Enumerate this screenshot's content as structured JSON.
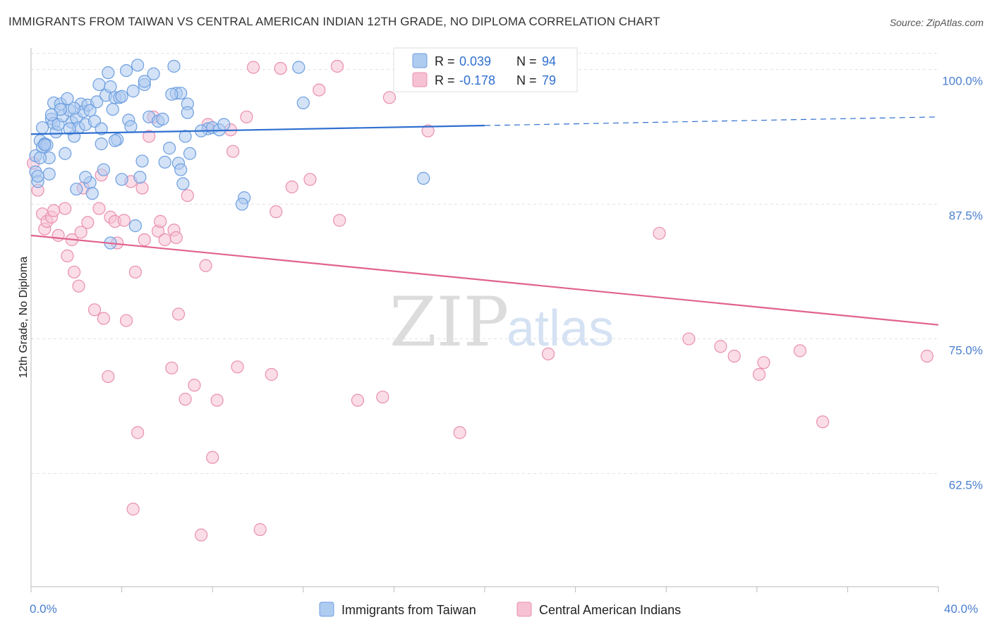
{
  "title": "IMMIGRANTS FROM TAIWAN VS CENTRAL AMERICAN INDIAN 12TH GRADE, NO DIPLOMA CORRELATION CHART",
  "source": "Source: ZipAtlas.com",
  "watermark": {
    "zip": "ZIP",
    "atlas": "atlas"
  },
  "colors": {
    "blue_fill": "#aecbf0",
    "blue_stroke": "#6d9fe0",
    "blue_line": "#2f6fd0",
    "pink_fill": "#f6c1d3",
    "pink_stroke": "#ea8fb0",
    "pink_line": "#e0628e",
    "grid": "#e3e3e3",
    "tick_text": "#4a7fd0"
  },
  "legend": {
    "rows": [
      {
        "r_label": "R = ",
        "r_value": "0.039",
        "n_label": "N = ",
        "n_value": "94",
        "color": "blue"
      },
      {
        "r_label": "R = ",
        "r_value": "-0.178",
        "n_label": "N = ",
        "n_value": "79",
        "color": "pink"
      }
    ]
  },
  "chart_data": {
    "type": "scatter",
    "title": "IMMIGRANTS FROM TAIWAN VS CENTRAL AMERICAN INDIAN 12TH GRADE, NO DIPLOMA CORRELATION CHART",
    "xlabel": "",
    "ylabel": "12th Grade, No Diploma",
    "xlim": [
      0,
      40
    ],
    "ylim": [
      52,
      102
    ],
    "x_tick_labels": [
      "0.0%",
      "40.0%"
    ],
    "y_ticks": [
      62.5,
      75.0,
      87.5,
      100.0
    ],
    "y_tick_labels": [
      "62.5%",
      "75.0%",
      "87.5%",
      "100.0%"
    ],
    "grid": true,
    "legend_position": "top-center",
    "series": [
      {
        "name": "Immigrants from Taiwan",
        "color": "blue",
        "trend": {
          "x0": 0,
          "y0": 94.0,
          "x1": 20,
          "y1": 94.8,
          "dash_to_x": 40,
          "dash_to_y": 95.6
        },
        "points": [
          [
            0.2,
            92.0
          ],
          [
            0.2,
            90.5
          ],
          [
            0.3,
            89.6
          ],
          [
            0.4,
            93.4
          ],
          [
            0.5,
            92.8
          ],
          [
            0.5,
            94.6
          ],
          [
            0.6,
            93.1
          ],
          [
            0.7,
            93.0
          ],
          [
            0.8,
            90.3
          ],
          [
            0.8,
            91.8
          ],
          [
            0.9,
            95.4
          ],
          [
            1.0,
            95.0
          ],
          [
            1.0,
            96.9
          ],
          [
            1.1,
            94.2
          ],
          [
            1.2,
            94.9
          ],
          [
            1.3,
            96.8
          ],
          [
            1.4,
            95.7
          ],
          [
            1.5,
            92.2
          ],
          [
            1.6,
            97.3
          ],
          [
            1.7,
            96.2
          ],
          [
            1.8,
            95.1
          ],
          [
            1.9,
            93.8
          ],
          [
            2.0,
            95.5
          ],
          [
            2.1,
            94.6
          ],
          [
            2.2,
            96.8
          ],
          [
            2.3,
            96.1
          ],
          [
            2.4,
            94.9
          ],
          [
            2.5,
            96.7
          ],
          [
            2.6,
            89.5
          ],
          [
            2.7,
            88.5
          ],
          [
            2.8,
            95.2
          ],
          [
            2.9,
            97.0
          ],
          [
            3.0,
            98.6
          ],
          [
            3.1,
            94.5
          ],
          [
            3.1,
            93.1
          ],
          [
            3.2,
            90.7
          ],
          [
            3.3,
            97.6
          ],
          [
            3.4,
            99.7
          ],
          [
            3.5,
            98.4
          ],
          [
            3.6,
            96.3
          ],
          [
            3.7,
            97.4
          ],
          [
            3.8,
            93.5
          ],
          [
            3.9,
            97.4
          ],
          [
            4.0,
            89.8
          ],
          [
            4.2,
            99.9
          ],
          [
            4.3,
            95.3
          ],
          [
            4.5,
            98.0
          ],
          [
            4.6,
            85.5
          ],
          [
            4.7,
            100.4
          ],
          [
            4.8,
            90.0
          ],
          [
            4.9,
            91.5
          ],
          [
            5.0,
            98.6
          ],
          [
            5.2,
            95.6
          ],
          [
            5.4,
            99.6
          ],
          [
            5.6,
            95.2
          ],
          [
            5.9,
            91.4
          ],
          [
            6.1,
            92.7
          ],
          [
            6.3,
            100.3
          ],
          [
            6.4,
            97.8
          ],
          [
            6.5,
            91.3
          ],
          [
            6.6,
            97.8
          ],
          [
            6.7,
            89.4
          ],
          [
            6.8,
            93.8
          ],
          [
            6.9,
            96.8
          ],
          [
            7.0,
            92.2
          ],
          [
            7.8,
            94.5
          ],
          [
            8.0,
            94.6
          ],
          [
            8.3,
            94.4
          ],
          [
            8.5,
            94.9
          ],
          [
            9.4,
            88.1
          ],
          [
            11.8,
            100.2
          ],
          [
            12.0,
            96.9
          ],
          [
            17.3,
            89.9
          ],
          [
            0.3,
            90.1
          ],
          [
            0.6,
            93.0
          ],
          [
            1.3,
            96.3
          ],
          [
            2.0,
            88.9
          ],
          [
            2.4,
            90.0
          ],
          [
            3.5,
            83.9
          ],
          [
            4.0,
            97.5
          ],
          [
            5.8,
            95.4
          ],
          [
            6.6,
            90.7
          ],
          [
            7.5,
            94.3
          ],
          [
            9.3,
            87.5
          ],
          [
            0.4,
            91.8
          ],
          [
            1.7,
            94.5
          ],
          [
            2.6,
            96.2
          ],
          [
            3.7,
            93.4
          ],
          [
            5.0,
            98.9
          ],
          [
            6.2,
            97.7
          ],
          [
            0.9,
            95.8
          ],
          [
            1.9,
            96.4
          ],
          [
            4.4,
            94.7
          ],
          [
            6.9,
            96.0
          ]
        ]
      },
      {
        "name": "Central American Indians",
        "color": "pink",
        "trend": {
          "x0": 0,
          "y0": 84.6,
          "x1": 40,
          "y1": 76.3
        },
        "points": [
          [
            0.1,
            91.3
          ],
          [
            0.3,
            88.8
          ],
          [
            0.5,
            86.6
          ],
          [
            0.6,
            85.2
          ],
          [
            0.7,
            85.9
          ],
          [
            0.9,
            86.3
          ],
          [
            1.2,
            84.6
          ],
          [
            1.5,
            87.1
          ],
          [
            1.6,
            82.7
          ],
          [
            1.8,
            84.2
          ],
          [
            1.9,
            81.2
          ],
          [
            2.1,
            79.9
          ],
          [
            2.3,
            89.0
          ],
          [
            2.5,
            85.8
          ],
          [
            2.8,
            77.7
          ],
          [
            3.0,
            87.1
          ],
          [
            3.2,
            76.9
          ],
          [
            3.4,
            71.5
          ],
          [
            3.5,
            86.3
          ],
          [
            3.7,
            85.9
          ],
          [
            3.8,
            83.9
          ],
          [
            4.2,
            76.7
          ],
          [
            4.4,
            89.6
          ],
          [
            4.5,
            59.2
          ],
          [
            4.6,
            81.2
          ],
          [
            4.7,
            66.3
          ],
          [
            4.9,
            89.0
          ],
          [
            5.0,
            84.2
          ],
          [
            5.2,
            93.8
          ],
          [
            5.6,
            85.0
          ],
          [
            5.7,
            85.9
          ],
          [
            5.9,
            84.2
          ],
          [
            6.2,
            72.3
          ],
          [
            6.3,
            85.1
          ],
          [
            6.4,
            84.4
          ],
          [
            6.5,
            77.3
          ],
          [
            6.8,
            69.4
          ],
          [
            7.2,
            70.7
          ],
          [
            7.5,
            56.8
          ],
          [
            7.7,
            81.8
          ],
          [
            7.8,
            94.9
          ],
          [
            8.0,
            64.0
          ],
          [
            8.2,
            69.3
          ],
          [
            8.8,
            94.4
          ],
          [
            8.9,
            92.4
          ],
          [
            9.1,
            72.4
          ],
          [
            9.5,
            95.6
          ],
          [
            9.8,
            100.2
          ],
          [
            10.1,
            57.3
          ],
          [
            10.6,
            71.7
          ],
          [
            10.8,
            86.8
          ],
          [
            11.0,
            100.1
          ],
          [
            11.5,
            89.1
          ],
          [
            12.3,
            89.8
          ],
          [
            12.7,
            98.1
          ],
          [
            13.5,
            100.3
          ],
          [
            13.6,
            86.0
          ],
          [
            14.4,
            69.3
          ],
          [
            15.5,
            69.6
          ],
          [
            15.8,
            97.4
          ],
          [
            17.5,
            94.3
          ],
          [
            18.9,
            66.3
          ],
          [
            22.8,
            73.6
          ],
          [
            27.7,
            84.8
          ],
          [
            29.0,
            75.0
          ],
          [
            30.4,
            74.3
          ],
          [
            31.0,
            73.4
          ],
          [
            32.1,
            71.7
          ],
          [
            32.3,
            72.8
          ],
          [
            33.9,
            73.9
          ],
          [
            34.9,
            67.3
          ],
          [
            39.5,
            73.4
          ],
          [
            23.0,
            100.2
          ],
          [
            3.1,
            90.2
          ],
          [
            1.0,
            86.9
          ],
          [
            4.1,
            86.0
          ],
          [
            6.9,
            88.3
          ],
          [
            5.4,
            95.6
          ],
          [
            2.2,
            84.9
          ]
        ]
      }
    ]
  },
  "bottom_legend": [
    {
      "label": "Immigrants from Taiwan",
      "color": "blue"
    },
    {
      "label": "Central American Indians",
      "color": "pink"
    }
  ]
}
